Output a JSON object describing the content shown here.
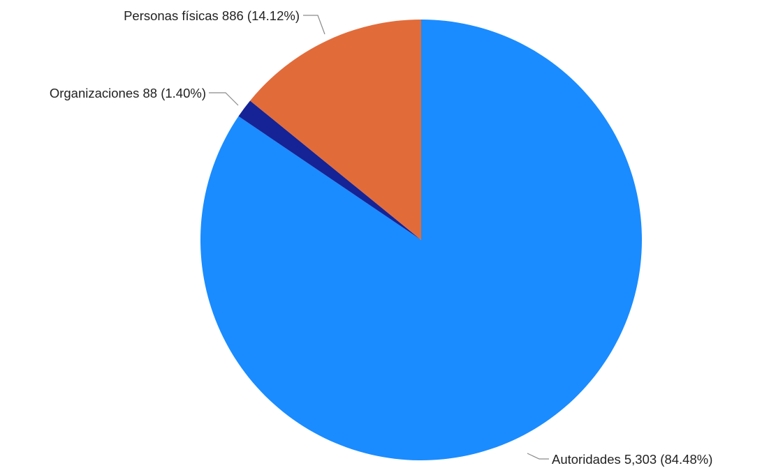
{
  "chart_data": {
    "type": "pie",
    "title": "",
    "start_angle_deg": 0,
    "direction": "clockwise",
    "slices": [
      {
        "name": "Autoridades",
        "value": 5303,
        "percent": 84.48,
        "value_label": "5,303",
        "percent_label": "(84.48%)",
        "label": "Autoridades 5,303 (84.48%)",
        "color": "#1a8cff"
      },
      {
        "name": "Organizaciones",
        "value": 88,
        "percent": 1.4,
        "value_label": "88",
        "percent_label": "(1.40%)",
        "label": "Organizaciones 88 (1.40%)",
        "color": "#152396"
      },
      {
        "name": "Personas físicas",
        "value": 886,
        "percent": 14.12,
        "value_label": "886",
        "percent_label": "(14.12%)",
        "label": "Personas físicas 886 (14.12%)",
        "color": "#e26b3a"
      }
    ],
    "legend": "none"
  }
}
